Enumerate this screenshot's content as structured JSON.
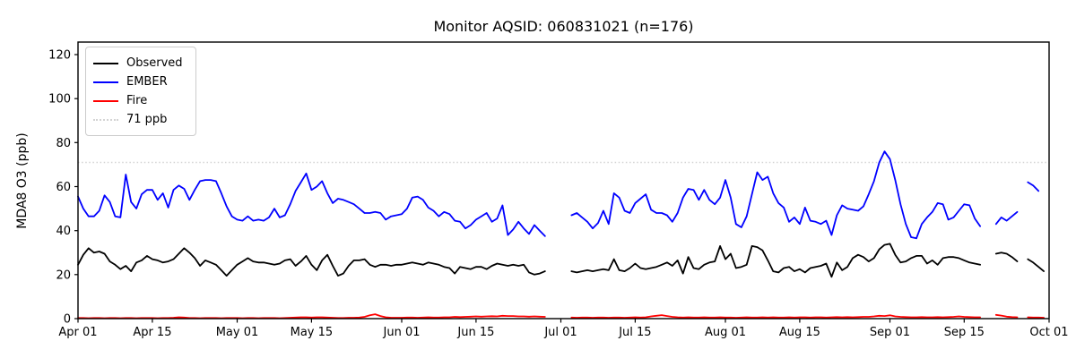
{
  "chart_data": {
    "type": "line",
    "title": "Monitor AQSID: 060831021 (n=176)",
    "xlabel": "",
    "ylabel": "MDA8 O3 (ppb)",
    "ylim": [
      0,
      125.7
    ],
    "yticks": [
      0,
      20,
      40,
      60,
      80,
      100,
      120
    ],
    "grid": false,
    "legend_position": "upper left",
    "x_total_days": 183,
    "x_start": "Apr 01",
    "x_end": "Oct 01",
    "xticks": [
      {
        "label": "Apr 01",
        "day": 0
      },
      {
        "label": "Apr 15",
        "day": 14
      },
      {
        "label": "May 01",
        "day": 30
      },
      {
        "label": "May 15",
        "day": 44
      },
      {
        "label": "Jun 01",
        "day": 61
      },
      {
        "label": "Jun 15",
        "day": 75
      },
      {
        "label": "Jul 01",
        "day": 91
      },
      {
        "label": "Jul 15",
        "day": 105
      },
      {
        "label": "Aug 01",
        "day": 122
      },
      {
        "label": "Aug 15",
        "day": 136
      },
      {
        "label": "Sep 01",
        "day": 153
      },
      {
        "label": "Sep 15",
        "day": 167
      },
      {
        "label": "Oct 01",
        "day": 183
      }
    ],
    "threshold": {
      "label": "71 ppb",
      "value": 71,
      "color": "#d3d3d3",
      "style": "dotted"
    },
    "missing_dates": [
      "Jun 29",
      "Jun 30",
      "Jul 01",
      "Jul 02",
      "Sep 19",
      "Sep 20",
      "Sep 26"
    ],
    "legend": [
      {
        "label": "Observed",
        "color": "#000000",
        "style": "solid"
      },
      {
        "label": "EMBER",
        "color": "#0000ff",
        "style": "solid"
      },
      {
        "label": "Fire",
        "color": "#ff0000",
        "style": "solid"
      },
      {
        "label": "71 ppb",
        "color": "#d3d3d3",
        "style": "dotted"
      }
    ],
    "series": [
      {
        "name": "Observed",
        "color": "#000000",
        "values": [
          24.5,
          29,
          32,
          30,
          30.5,
          29.5,
          26,
          24.5,
          22.5,
          24,
          21.5,
          25.5,
          26.5,
          28.5,
          27,
          26.5,
          25.5,
          26,
          27,
          29.5,
          32,
          30,
          27.5,
          24,
          26.5,
          25.5,
          24.5,
          22,
          19.5,
          22,
          24.5,
          26,
          27.5,
          26,
          25.5,
          25.5,
          25,
          24.5,
          25,
          26.5,
          27,
          24,
          26,
          28.5,
          24.5,
          22,
          26.5,
          29,
          24,
          19.5,
          20.5,
          24,
          26.5,
          26.5,
          27,
          24.5,
          23.5,
          24.5,
          24.5,
          24,
          24.5,
          24.5,
          25,
          25.5,
          25,
          24.5,
          25.5,
          25,
          24.5,
          23.5,
          23,
          20.5,
          23.5,
          23,
          22.5,
          23.5,
          23.5,
          22.5,
          24,
          25,
          24.5,
          24,
          24.5,
          24,
          24.5,
          21,
          20,
          20.5,
          21.5,
          null,
          null,
          null,
          null,
          21.5,
          21,
          21.5,
          22,
          21.5,
          22,
          22.5,
          22,
          27,
          22,
          21.5,
          23,
          25,
          23,
          22.5,
          23,
          23.5,
          24.5,
          25.5,
          24,
          26.5,
          20.5,
          28,
          23,
          22.5,
          24.5,
          25.5,
          26,
          33,
          27,
          29.5,
          23,
          23.5,
          24.5,
          33,
          32.5,
          31,
          26.5,
          21.5,
          21,
          23,
          23.5,
          21.5,
          22.5,
          21,
          23,
          23.5,
          24,
          25,
          19,
          25.5,
          22,
          23.5,
          27.5,
          29,
          28,
          26,
          27.5,
          31.5,
          33.5,
          34,
          29,
          25.5,
          26,
          27.5,
          28.5,
          28.5,
          25,
          26.5,
          24.5,
          27.5,
          28,
          28,
          27.5,
          26.5,
          25.5,
          25,
          24.5,
          null,
          null,
          29.5,
          30,
          29.5,
          28,
          26,
          null,
          27,
          25.5,
          23.5,
          21.5
        ]
      },
      {
        "name": "EMBER",
        "color": "#0000ff",
        "values": [
          55.5,
          50,
          46.5,
          46.5,
          49,
          56,
          53,
          46.5,
          46,
          65.5,
          53,
          50,
          56.5,
          58.5,
          58.5,
          54,
          57,
          50.5,
          58.5,
          60.5,
          59,
          54,
          58.5,
          62.5,
          63,
          63,
          62.5,
          57,
          51,
          46.5,
          45,
          44.5,
          46.5,
          44.5,
          45,
          44.5,
          46,
          50,
          46,
          47,
          52,
          58,
          62,
          66,
          58.5,
          60,
          62.5,
          57,
          52.5,
          54.5,
          54,
          53,
          52,
          50,
          48,
          48,
          48.5,
          48,
          45,
          46.5,
          47,
          47.5,
          50,
          55,
          55.5,
          54,
          50.5,
          49,
          46.5,
          48.5,
          47.5,
          44.5,
          44,
          41,
          42.5,
          45,
          46.5,
          48,
          44,
          45.5,
          51.5,
          38,
          40.5,
          44,
          41,
          38.5,
          42.5,
          40,
          37.5,
          null,
          null,
          null,
          null,
          47,
          48,
          46,
          44,
          41,
          43.5,
          49,
          43,
          57,
          55,
          49,
          48,
          52.5,
          54.5,
          56.5,
          49.5,
          48,
          48,
          47,
          44,
          48,
          55,
          59,
          58.5,
          54,
          58.5,
          54,
          52,
          55,
          63,
          55,
          43,
          41.5,
          46.5,
          56.5,
          66.5,
          63,
          64.5,
          57,
          52.5,
          50.5,
          44,
          46,
          43,
          50.5,
          44.5,
          44,
          43,
          44.5,
          38,
          47,
          51.5,
          50,
          49.5,
          49,
          51,
          56.5,
          62.5,
          71,
          76,
          72.5,
          63,
          52,
          43,
          37,
          36.5,
          43,
          46,
          48.5,
          52.5,
          52,
          45,
          46,
          49,
          52,
          51.5,
          45.5,
          42,
          null,
          null,
          43,
          46,
          44.5,
          46.5,
          48.5,
          null,
          62,
          60.5,
          58,
          null
        ]
      },
      {
        "name": "Fire",
        "color": "#ff0000",
        "values": [
          0.3,
          0.3,
          0.2,
          0.3,
          0.3,
          0.2,
          0.3,
          0.3,
          0.2,
          0.3,
          0.3,
          0.2,
          0.3,
          0.3,
          0.3,
          0.2,
          0.3,
          0.3,
          0.4,
          0.6,
          0.5,
          0.3,
          0.3,
          0.2,
          0.3,
          0.3,
          0.3,
          0.2,
          0.3,
          0.3,
          0.3,
          0.2,
          0.3,
          0.3,
          0.2,
          0.3,
          0.3,
          0.3,
          0.2,
          0.3,
          0.4,
          0.5,
          0.6,
          0.6,
          0.5,
          0.6,
          0.6,
          0.5,
          0.4,
          0.3,
          0.3,
          0.4,
          0.4,
          0.5,
          0.8,
          1.5,
          2.0,
          1.2,
          0.6,
          0.4,
          0.4,
          0.4,
          0.5,
          0.5,
          0.4,
          0.5,
          0.6,
          0.5,
          0.5,
          0.6,
          0.6,
          0.8,
          0.7,
          0.8,
          0.9,
          1.0,
          0.9,
          1.0,
          1.1,
          1.0,
          1.3,
          1.2,
          1.2,
          1.0,
          1.0,
          0.9,
          1.0,
          0.9,
          0.8,
          null,
          null,
          null,
          null,
          0.5,
          0.4,
          0.5,
          0.5,
          0.4,
          0.5,
          0.5,
          0.4,
          0.5,
          0.5,
          0.4,
          0.5,
          0.6,
          0.5,
          0.6,
          1.0,
          1.3,
          1.6,
          1.2,
          0.8,
          0.6,
          0.5,
          0.6,
          0.5,
          0.5,
          0.6,
          0.5,
          0.5,
          0.6,
          0.5,
          0.5,
          0.4,
          0.5,
          0.6,
          0.5,
          0.5,
          0.6,
          0.5,
          0.6,
          0.5,
          0.5,
          0.6,
          0.5,
          0.6,
          0.6,
          0.5,
          0.6,
          0.6,
          0.5,
          0.6,
          0.7,
          0.6,
          0.7,
          0.6,
          0.7,
          0.8,
          0.8,
          1.0,
          1.3,
          1.2,
          1.5,
          1.0,
          0.8,
          0.7,
          0.6,
          0.6,
          0.7,
          0.6,
          0.6,
          0.7,
          0.6,
          0.7,
          0.8,
          1.0,
          0.8,
          0.7,
          0.6,
          0.6,
          null,
          null,
          1.7,
          1.4,
          0.9,
          0.7,
          0.6,
          null,
          0.6,
          0.5,
          0.5,
          0.4
        ]
      }
    ]
  }
}
